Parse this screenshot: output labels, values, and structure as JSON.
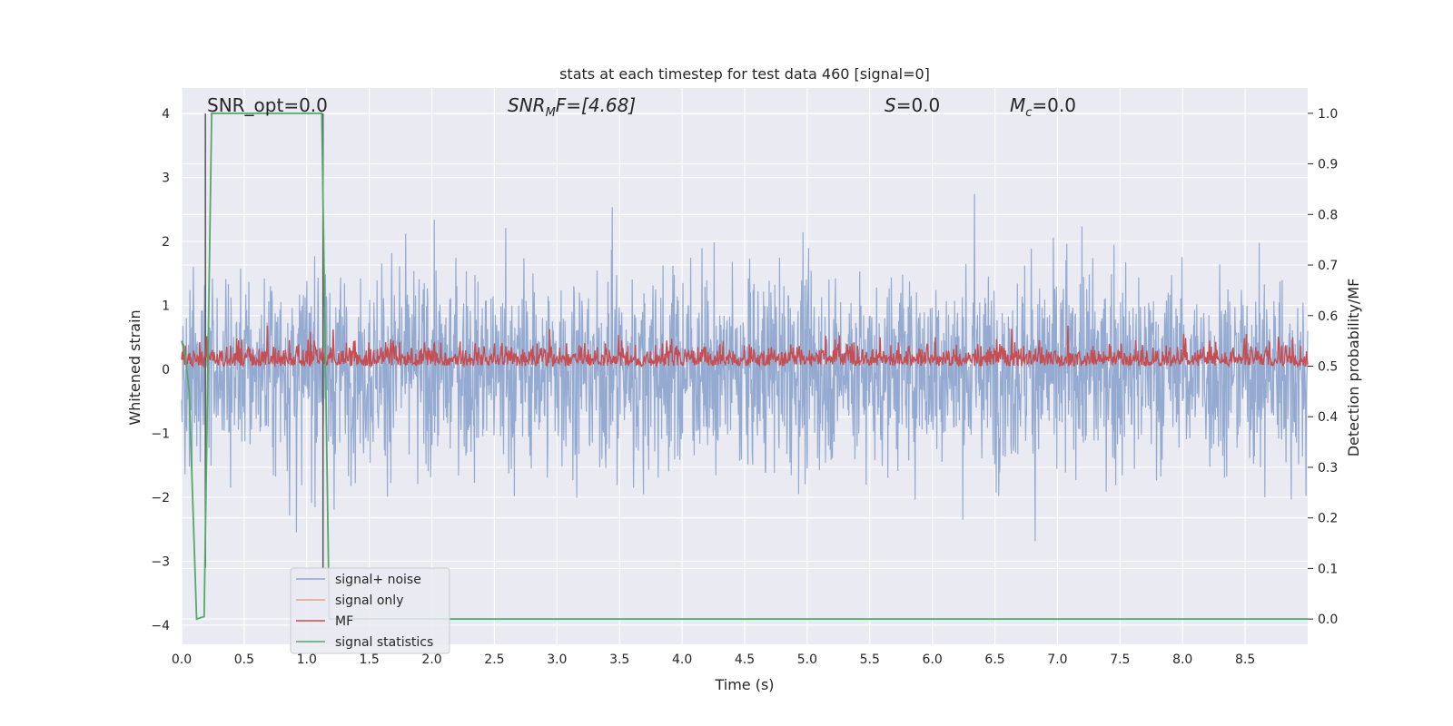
{
  "chart_data": {
    "type": "line",
    "title": "stats at each timestep for test data 460 [signal=0]",
    "xlabel": "Time (s)",
    "ylabel_left": "Whitened strain",
    "ylabel_right": "Detection probability/MF",
    "xlim": [
      0.0,
      9.0
    ],
    "ylim_left": [
      -4.3,
      4.4
    ],
    "ylim_right": [
      -0.05,
      1.05
    ],
    "x_ticks": [
      "0.0",
      "0.5",
      "1.0",
      "1.5",
      "2.0",
      "2.5",
      "3.0",
      "3.5",
      "4.0",
      "4.5",
      "5.0",
      "5.5",
      "6.0",
      "6.5",
      "7.0",
      "7.5",
      "8.0",
      "8.5"
    ],
    "y_ticks_left": [
      "−4",
      "−3",
      "−2",
      "−1",
      "0",
      "1",
      "2",
      "3",
      "4"
    ],
    "y_ticks_right": [
      "0.0",
      "0.1",
      "0.2",
      "0.3",
      "0.4",
      "0.5",
      "0.6",
      "0.7",
      "0.8",
      "0.9",
      "1.0"
    ],
    "grid": true,
    "annotations": [
      {
        "text": "SNR_opt=0.0"
      },
      {
        "text": "SNR_MF=[4.68]",
        "display_main": "SNR",
        "display_sub": "M",
        "display_rest": "F=[4.68]"
      },
      {
        "text": "S=0.0",
        "display_main": "S",
        "display_rest": "=0.0"
      },
      {
        "text": "M_c=0.0",
        "display_main": "M",
        "display_sub": "c",
        "display_rest": "=0.0"
      }
    ],
    "vertical_markers_s": [
      0.19,
      1.13
    ],
    "legend": {
      "location": "lower-left",
      "entries": [
        "signal+ noise",
        "signal only",
        "MF",
        "signal statistics"
      ]
    },
    "series": [
      {
        "name": "signal+ noise",
        "color": "#8fa6cf",
        "axis": "left",
        "description_amplitude": 4.0,
        "style": "noise"
      },
      {
        "name": "signal only",
        "color": "#e8a085",
        "axis": "left",
        "values": [],
        "style": "flat"
      },
      {
        "name": "MF",
        "color": "#c44e52",
        "axis": "right",
        "baseline": 0.5,
        "max": 0.6,
        "style": "mf"
      },
      {
        "name": "signal statistics",
        "color": "#55a868",
        "axis": "right",
        "x": [
          0.0,
          0.03,
          0.06,
          0.12,
          0.18,
          0.24,
          1.12,
          1.18,
          1.24,
          9.0
        ],
        "y": [
          0.55,
          0.52,
          0.45,
          0.0,
          0.005,
          1.0,
          1.0,
          0.0,
          0.0,
          0.0
        ]
      }
    ]
  }
}
